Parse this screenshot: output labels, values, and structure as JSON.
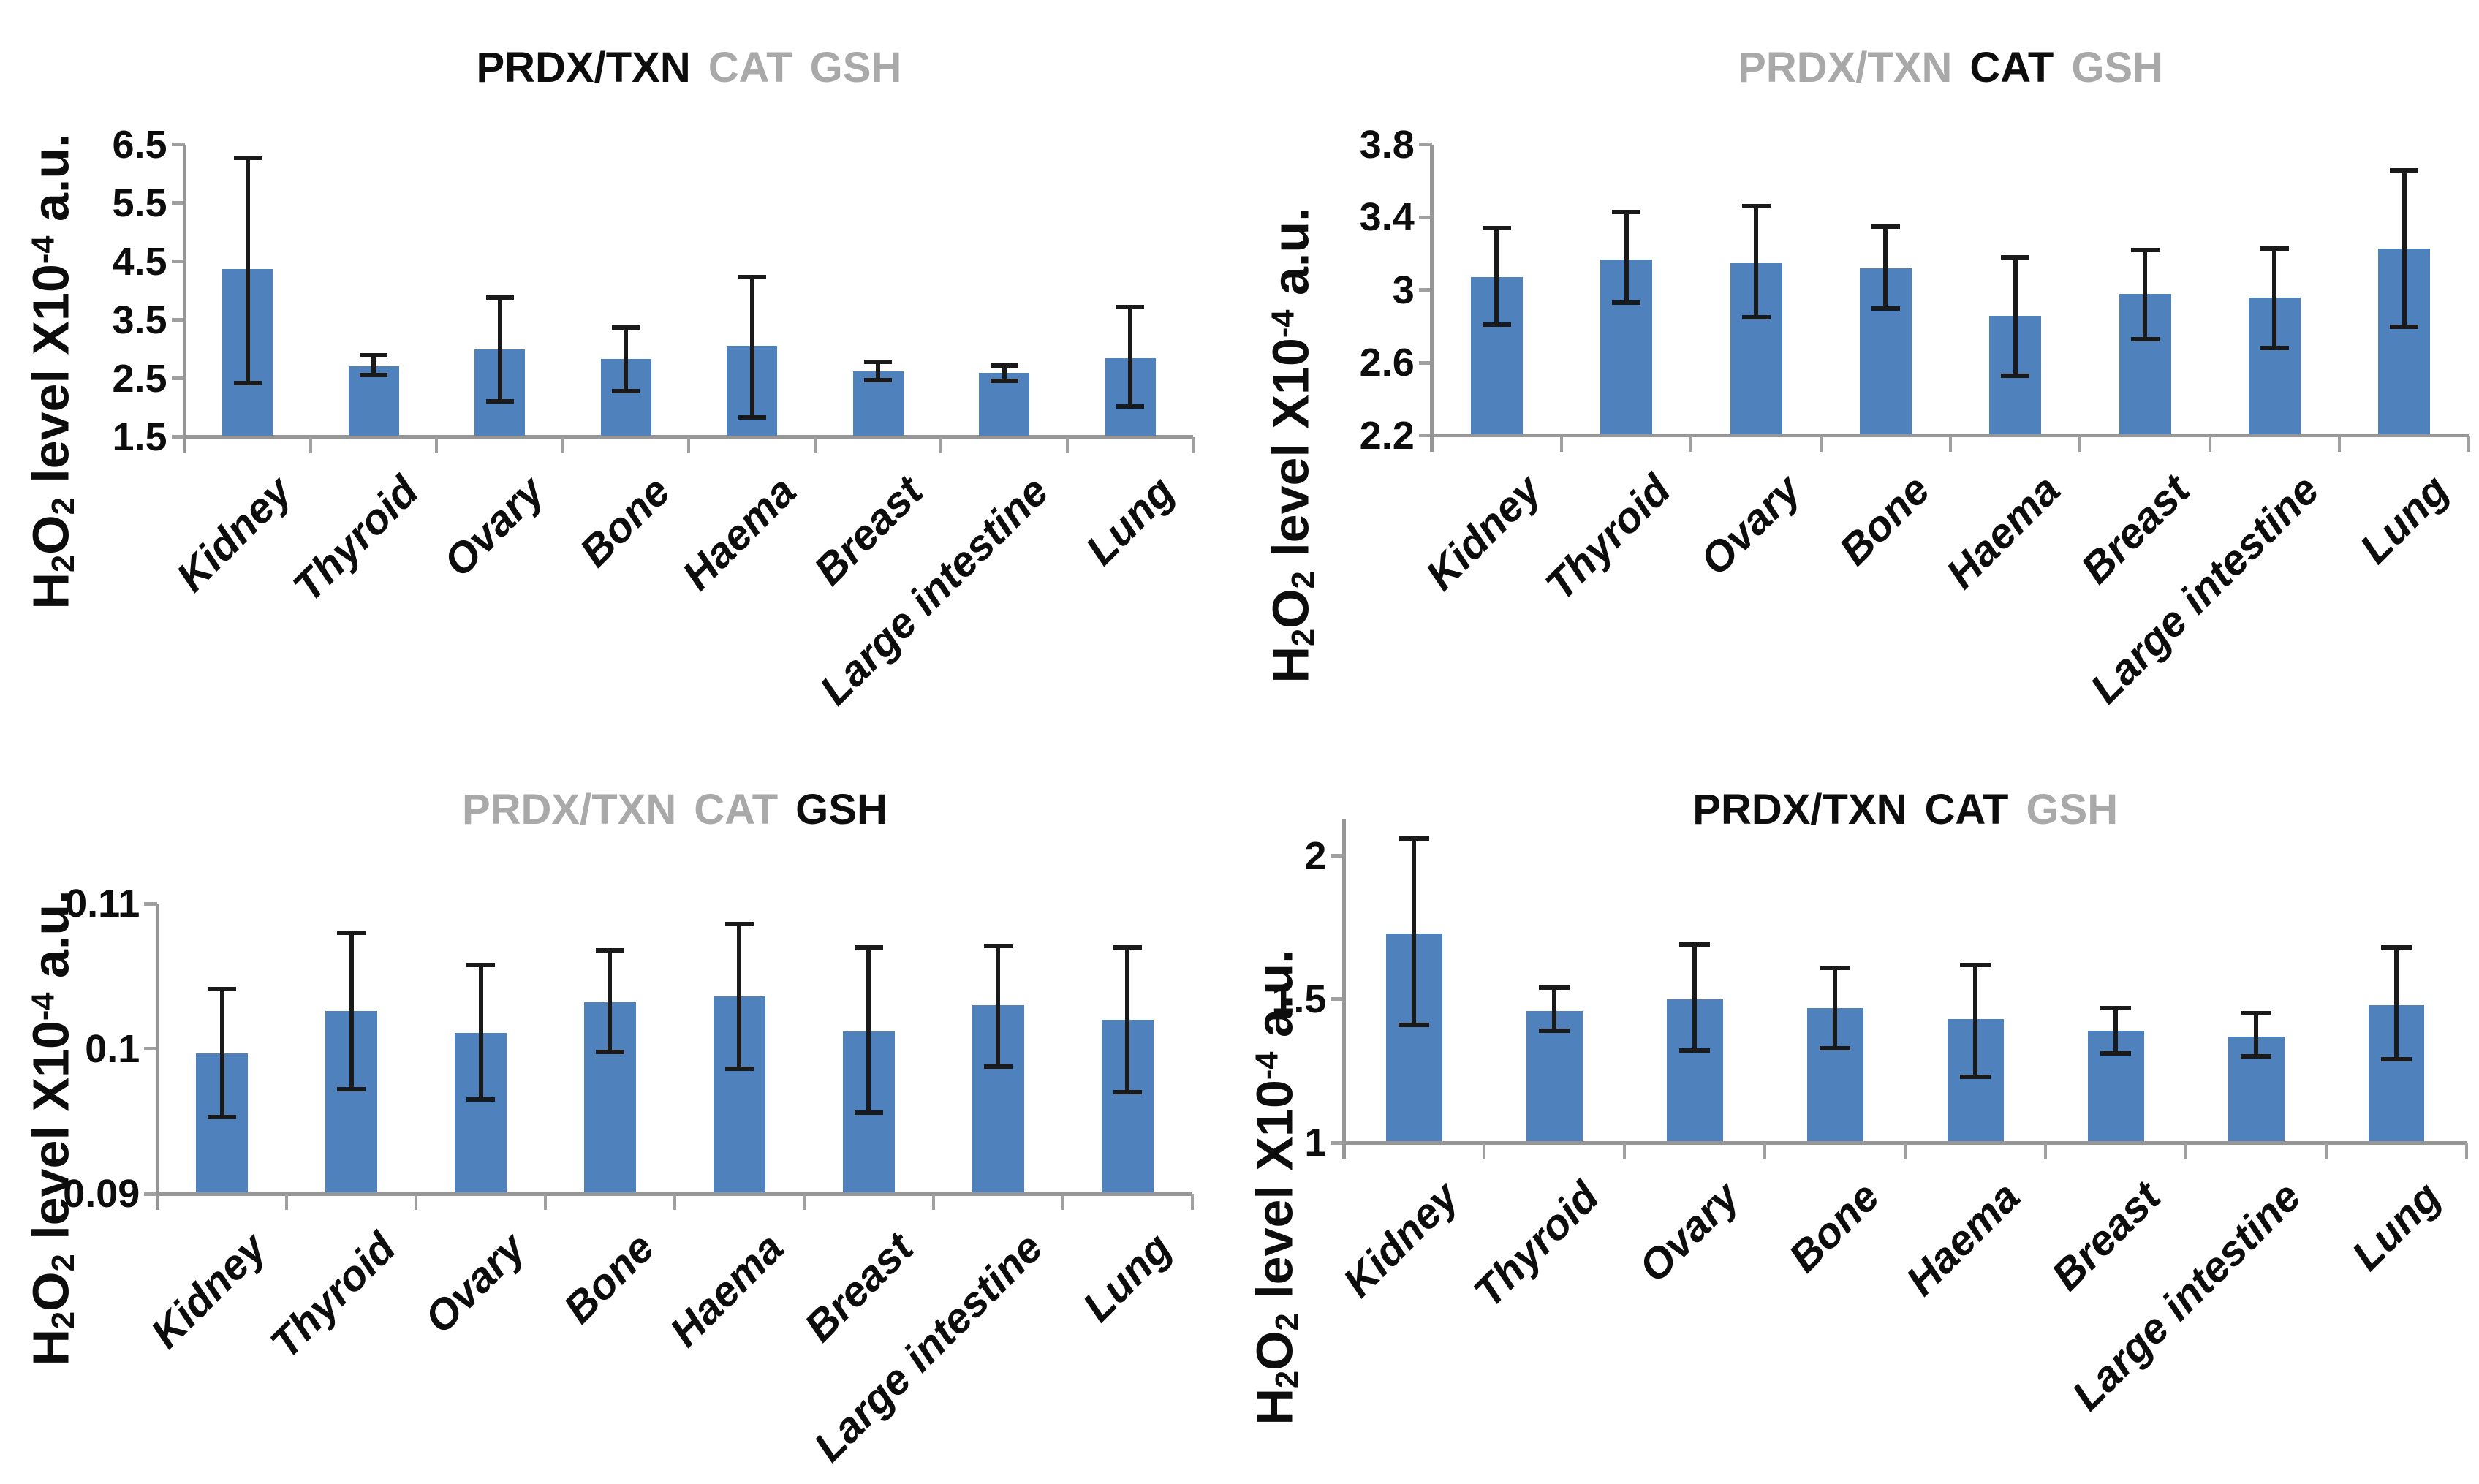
{
  "figure": {
    "background": "#FFFFFF",
    "ylabel_text": "H2O2 level X10-4 a.u.",
    "ylabel_parts": [
      {
        "t": "H",
        "style": "base"
      },
      {
        "t": "2",
        "style": "sub"
      },
      {
        "t": "O",
        "style": "base"
      },
      {
        "t": "2",
        "style": "sub"
      },
      {
        "t": " level X10",
        "style": "base"
      },
      {
        "t": "-4",
        "style": "sup"
      },
      {
        "t": " a.u.",
        "style": "base"
      }
    ]
  },
  "colors": {
    "bar": "#4F81BD",
    "axis_line": "#969696",
    "boundary_tick": "#A0A0A0",
    "error_bar": "#1A1A1A",
    "title_active": "#0D0D0D",
    "title_inactive": "#A9A9A9",
    "text": "#0D0D0D"
  },
  "chart_data": [
    {
      "type": "bar",
      "position": "top-left",
      "title_parts": [
        {
          "text": "PRDX/TXN",
          "emphasized": true
        },
        {
          "text": "CAT",
          "emphasized": false
        },
        {
          "text": "GSH",
          "emphasized": false
        }
      ],
      "ylabel": "H2O2 level X10-4 a.u.",
      "categories": [
        "Kidney",
        "Thyroid",
        "Ovary",
        "Bone",
        "Haema",
        "Breast",
        "Large intestine",
        "Lung"
      ],
      "values": [
        4.37,
        2.71,
        3.0,
        2.83,
        3.06,
        2.62,
        2.6,
        2.85
      ],
      "error_high": [
        6.28,
        2.9,
        3.88,
        3.37,
        4.24,
        2.79,
        2.72,
        3.72
      ],
      "error_low": [
        2.42,
        2.56,
        2.11,
        2.28,
        1.83,
        2.47,
        2.46,
        2.02
      ],
      "ylim": [
        1.5,
        6.5
      ],
      "yticks": [
        1.5,
        2.5,
        3.5,
        4.5,
        5.5,
        6.5
      ],
      "ytick_labels": [
        "1.5",
        "2.5",
        "3.5",
        "4.5",
        "5.5",
        "6.5"
      ],
      "grid": false,
      "legend": "none"
    },
    {
      "type": "bar",
      "position": "top-right",
      "title_parts": [
        {
          "text": "PRDX/TXN",
          "emphasized": false
        },
        {
          "text": "CAT",
          "emphasized": true
        },
        {
          "text": "GSH",
          "emphasized": false
        }
      ],
      "ylabel": "H2O2 level X10-4 a.u.",
      "categories": [
        "Kidney",
        "Thyroid",
        "Ovary",
        "Bone",
        "Haema",
        "Breast",
        "Large intestine",
        "Lung"
      ],
      "values": [
        3.07,
        3.17,
        3.15,
        3.12,
        2.86,
        2.98,
        2.96,
        3.23
      ],
      "error_high": [
        3.34,
        3.43,
        3.46,
        3.35,
        3.18,
        3.22,
        3.23,
        3.66
      ],
      "error_low": [
        2.81,
        2.93,
        2.85,
        2.9,
        2.53,
        2.73,
        2.68,
        2.8
      ],
      "ylim": [
        2.2,
        3.8
      ],
      "yticks": [
        2.2,
        2.6,
        3.0,
        3.4,
        3.8
      ],
      "ytick_labels": [
        "2.2",
        "2.6",
        "3",
        "3.4",
        "3.8"
      ],
      "grid": false,
      "legend": "none"
    },
    {
      "type": "bar",
      "position": "bottom-left",
      "title_parts": [
        {
          "text": "PRDX/TXN",
          "emphasized": false
        },
        {
          "text": "CAT",
          "emphasized": false
        },
        {
          "text": "GSH",
          "emphasized": true
        }
      ],
      "ylabel": "H2O2 level X10-4 a.u.",
      "categories": [
        "Kidney",
        "Thyroid",
        "Ovary",
        "Bone",
        "Haema",
        "Breast",
        "Large intestine",
        "Lung"
      ],
      "values": [
        0.0997,
        0.1026,
        0.1011,
        0.1032,
        0.1036,
        0.1012,
        0.103,
        0.102
      ],
      "error_high": [
        0.1041,
        0.108,
        0.1058,
        0.1068,
        0.1086,
        0.107,
        0.1071,
        0.107
      ],
      "error_low": [
        0.0953,
        0.0972,
        0.0965,
        0.0998,
        0.0986,
        0.0956,
        0.0988,
        0.097
      ],
      "ylim": [
        0.09,
        0.11
      ],
      "yticks": [
        0.09,
        0.1,
        0.11
      ],
      "ytick_labels": [
        "0.09",
        "0.1",
        "0.11"
      ],
      "grid": false,
      "legend": "none"
    },
    {
      "type": "bar",
      "position": "bottom-right",
      "title_parts": [
        {
          "text": "PRDX/TXN",
          "emphasized": true
        },
        {
          "text": "CAT",
          "emphasized": true
        },
        {
          "text": "GSH",
          "emphasized": false
        }
      ],
      "ylabel": "H2O2 level X10-4 a.u.",
      "categories": [
        "Kidney",
        "Thyroid",
        "Ovary",
        "Bone",
        "Haema",
        "Breast",
        "Large intestine",
        "Lung"
      ],
      "values": [
        1.73,
        1.46,
        1.5,
        1.47,
        1.43,
        1.39,
        1.37,
        1.48
      ],
      "error_high": [
        2.06,
        1.54,
        1.69,
        1.61,
        1.62,
        1.47,
        1.45,
        1.68
      ],
      "error_low": [
        1.41,
        1.39,
        1.32,
        1.33,
        1.23,
        1.31,
        1.3,
        1.29
      ],
      "ylim": [
        1.0,
        2.13
      ],
      "yticks": [
        1.0,
        1.5,
        2.0
      ],
      "ytick_labels": [
        "1",
        "1.5",
        "2"
      ],
      "grid": false,
      "legend": "none"
    }
  ]
}
